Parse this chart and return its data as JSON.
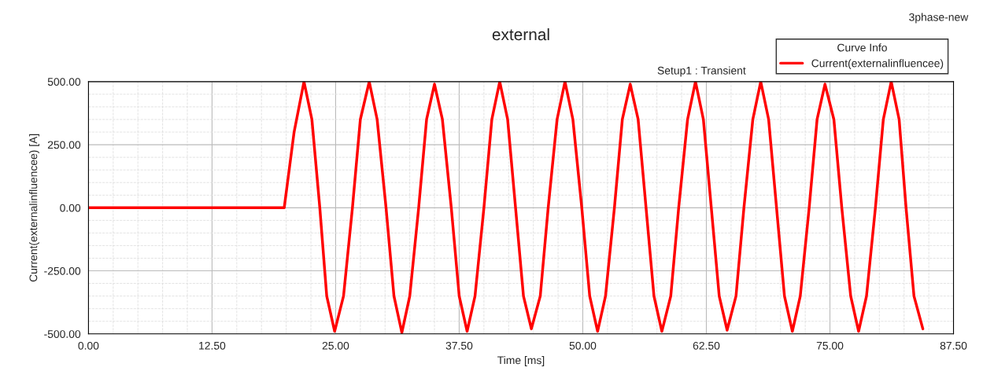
{
  "chart_data": {
    "type": "line",
    "title": "external",
    "xlabel": "Time [ms]",
    "ylabel": "Current(externalinfluencee) [A]",
    "legend_title": "Curve Info",
    "annotations": [
      "3phase-new",
      "Setup1 : Transient"
    ],
    "series": [
      {
        "name": "Current(externalinfluencee)",
        "color": "#ff0000",
        "x": [
          0,
          19.8,
          20.8,
          21.8,
          22.6,
          23.4,
          24.1,
          24.9,
          25.8,
          26.7,
          27.5,
          28.4,
          29.2,
          30.1,
          30.9,
          31.7,
          32.5,
          33.4,
          34.2,
          35.0,
          35.8,
          36.7,
          37.5,
          38.3,
          39.1,
          40.0,
          40.8,
          41.6,
          42.4,
          43.2,
          44.0,
          44.8,
          45.7,
          46.5,
          47.4,
          48.2,
          49.0,
          49.9,
          50.7,
          51.5,
          52.3,
          53.2,
          54.0,
          54.8,
          55.6,
          56.4,
          57.2,
          58.0,
          58.9,
          59.7,
          60.6,
          61.4,
          62.2,
          63.0,
          63.8,
          64.6,
          65.5,
          66.3,
          67.2,
          68.0,
          68.8,
          69.6,
          70.4,
          71.2,
          72.0,
          72.9,
          73.7,
          74.5,
          75.4,
          76.2,
          77.1,
          77.9,
          78.7,
          79.6,
          80.4,
          81.2,
          82.0,
          82.7,
          83.5,
          84.4
        ],
        "values": [
          0,
          0,
          300,
          500,
          350,
          0,
          -350,
          -490,
          -350,
          0,
          350,
          500,
          350,
          0,
          -350,
          -495,
          -350,
          0,
          350,
          490,
          350,
          0,
          -350,
          -490,
          -350,
          0,
          350,
          500,
          350,
          0,
          -350,
          -480,
          -350,
          0,
          350,
          500,
          350,
          0,
          -350,
          -490,
          -350,
          0,
          350,
          490,
          350,
          0,
          -350,
          -490,
          -350,
          0,
          350,
          500,
          350,
          0,
          -350,
          -485,
          -350,
          0,
          350,
          500,
          350,
          0,
          -350,
          -490,
          -350,
          0,
          350,
          490,
          350,
          0,
          -350,
          -490,
          -350,
          0,
          350,
          500,
          350,
          0,
          -350,
          -480
        ]
      }
    ],
    "xlim": [
      0,
      87.5
    ],
    "xticks": [
      {
        "value": 0,
        "label": "0.00"
      },
      {
        "value": 12.5,
        "label": "12.50"
      },
      {
        "value": 25,
        "label": "25.00"
      },
      {
        "value": 37.5,
        "label": "37.50"
      },
      {
        "value": 50,
        "label": "50.00"
      },
      {
        "value": 62.5,
        "label": "62.50"
      },
      {
        "value": 75,
        "label": "75.00"
      },
      {
        "value": 87.5,
        "label": "87.50"
      }
    ],
    "ylim": [
      -500,
      500
    ],
    "yticks": [
      {
        "value": -500,
        "label": "-500.00"
      },
      {
        "value": -250,
        "label": "-250.00"
      },
      {
        "value": 0,
        "label": "0.00"
      },
      {
        "value": 250,
        "label": "250.00"
      },
      {
        "value": 500,
        "label": "500.00"
      }
    ],
    "grid": true,
    "legend": "top right",
    "marker": "none",
    "line_style": "solid"
  }
}
